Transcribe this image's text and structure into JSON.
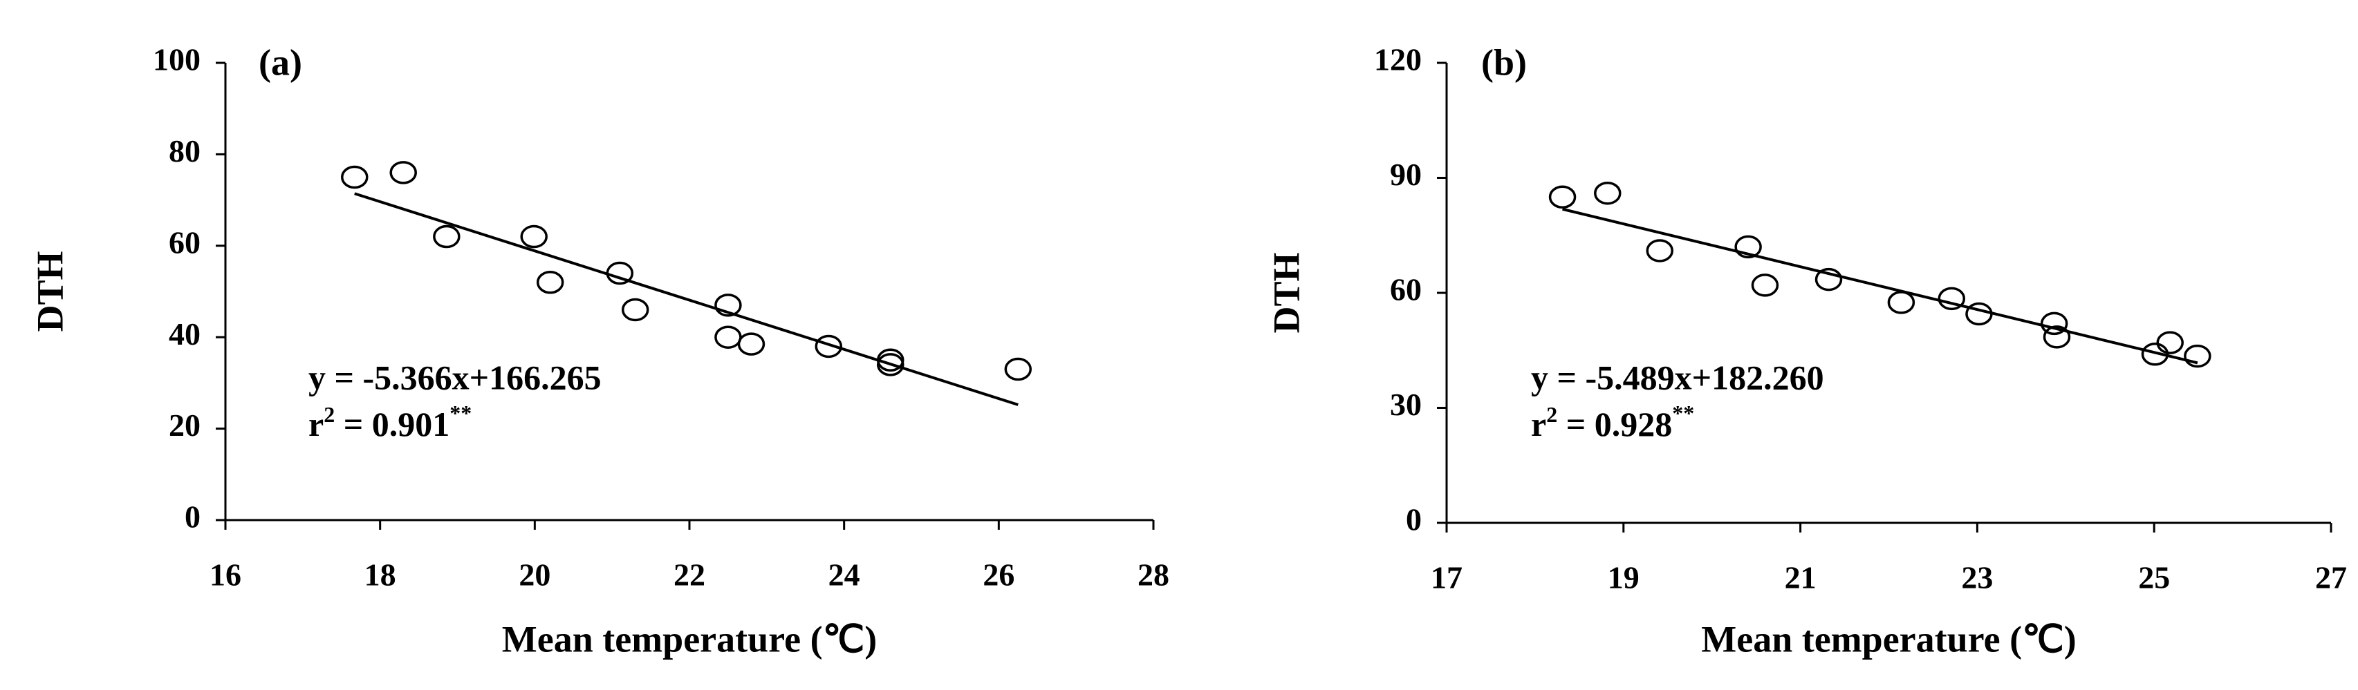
{
  "chart_data": [
    {
      "type": "scatter",
      "panel_label": "(a)",
      "x_label": "Mean temperature (℃)",
      "y_label": "DTH",
      "equation": "y = -5.366x+166.265",
      "r2": {
        "symbol": "r",
        "exponent": "2",
        "value": " = 0.901",
        "significance": "**"
      },
      "x": [
        17.67,
        18.3,
        18.86,
        19.99,
        20.2,
        21.1,
        21.3,
        22.5,
        22.5,
        22.8,
        23.8,
        24.6,
        24.6,
        26.25
      ],
      "values": [
        75,
        76,
        62,
        62,
        52,
        54,
        46,
        47,
        40,
        38.5,
        38,
        35,
        34,
        33
      ],
      "xlim": [
        16,
        28
      ],
      "xticks": [
        16,
        18,
        20,
        22,
        24,
        26,
        28
      ],
      "ylim": [
        0,
        100
      ],
      "yticks": [
        0,
        20,
        40,
        60,
        80,
        100
      ],
      "color": "#000000",
      "trendline": true,
      "grid": false
    },
    {
      "type": "scatter",
      "panel_label": "(b)",
      "x_label": "Mean temperature (℃)",
      "y_label": "DTH",
      "equation": "y = -5.489x+182.260",
      "r2": {
        "symbol": "r",
        "exponent": "2",
        "value": " = 0.928",
        "significance": "**"
      },
      "x": [
        18.31,
        18.82,
        19.41,
        20.41,
        20.6,
        21.32,
        22.14,
        22.71,
        23.02,
        23.87,
        23.9,
        25.01,
        25.18,
        25.49
      ],
      "values": [
        85,
        86,
        71,
        72,
        62,
        63.5,
        57.5,
        58.5,
        54.5,
        52,
        48.5,
        44,
        47,
        43.5
      ],
      "xlim": [
        17,
        27
      ],
      "xticks": [
        17,
        19,
        21,
        23,
        25,
        27
      ],
      "ylim": [
        0,
        120
      ],
      "yticks": [
        0,
        30,
        60,
        90,
        120
      ],
      "color": "#000000",
      "trendline": true,
      "grid": false
    }
  ]
}
